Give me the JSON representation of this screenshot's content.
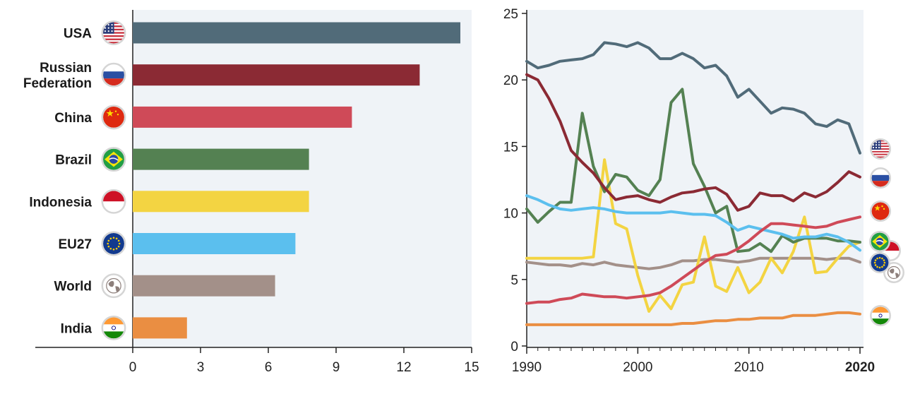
{
  "chart_data": [
    {
      "type": "bar",
      "orientation": "horizontal",
      "categories": [
        "USA",
        "Russian Federation",
        "China",
        "Brazil",
        "Indonesia",
        "EU27",
        "World",
        "India"
      ],
      "category_lines": [
        [
          "USA"
        ],
        [
          "Russian",
          "Federation"
        ],
        [
          "China"
        ],
        [
          "Brazil"
        ],
        [
          "Indonesia"
        ],
        [
          "EU27"
        ],
        [
          "World"
        ],
        [
          "India"
        ]
      ],
      "flags": [
        "us-flag-icon",
        "russia-flag-icon",
        "china-flag-icon",
        "brazil-flag-icon",
        "indonesia-flag-icon",
        "eu-flag-icon",
        "globe-icon",
        "india-flag-icon"
      ],
      "values": [
        14.5,
        12.7,
        9.7,
        7.8,
        7.8,
        7.2,
        6.3,
        2.4
      ],
      "colors": [
        "#516b79",
        "#8b2a34",
        "#cf4a58",
        "#548152",
        "#f3d442",
        "#5bbfee",
        "#a39089",
        "#ea8e42"
      ],
      "xlim": [
        0,
        15
      ],
      "xticks": [
        0,
        3,
        6,
        9,
        12,
        15
      ],
      "grid": false
    },
    {
      "type": "line",
      "x": [
        1990,
        1991,
        1992,
        1993,
        1994,
        1995,
        1996,
        1997,
        1998,
        1999,
        2000,
        2001,
        2002,
        2003,
        2004,
        2005,
        2006,
        2007,
        2008,
        2009,
        2010,
        2011,
        2012,
        2013,
        2014,
        2015,
        2016,
        2017,
        2018,
        2019,
        2020
      ],
      "xticks": [
        "1990",
        "2000",
        "2010",
        "2020"
      ],
      "xlim": [
        1990,
        2020
      ],
      "ylim": [
        0,
        25
      ],
      "yticks": [
        0,
        5,
        10,
        15,
        20,
        25
      ],
      "grid": false,
      "series": [
        {
          "flag": "us-flag-icon",
          "color": "#516b79",
          "values": [
            21.4,
            20.9,
            21.1,
            21.4,
            21.5,
            21.6,
            21.9,
            22.8,
            22.7,
            22.5,
            22.8,
            22.4,
            21.6,
            21.6,
            22.0,
            21.6,
            20.9,
            21.1,
            20.3,
            18.7,
            19.3,
            18.4,
            17.5,
            17.9,
            17.8,
            17.5,
            16.7,
            16.5,
            17.0,
            16.7,
            14.5
          ]
        },
        {
          "flag": "russia-flag-icon",
          "color": "#8b2a34",
          "values": [
            20.4,
            20.0,
            18.6,
            16.9,
            14.7,
            13.8,
            13.0,
            11.9,
            11.0,
            11.2,
            11.3,
            11.0,
            10.8,
            11.2,
            11.5,
            11.6,
            11.8,
            11.9,
            11.4,
            10.2,
            10.5,
            11.5,
            11.3,
            11.3,
            10.9,
            11.5,
            11.2,
            11.6,
            12.3,
            13.1,
            12.7
          ]
        },
        {
          "flag": "china-flag-icon",
          "color": "#cf4a58",
          "values": [
            3.2,
            3.3,
            3.3,
            3.5,
            3.6,
            3.9,
            3.8,
            3.7,
            3.7,
            3.6,
            3.7,
            3.8,
            4.0,
            4.5,
            5.1,
            5.7,
            6.3,
            6.8,
            6.9,
            7.3,
            7.9,
            8.6,
            9.2,
            9.2,
            9.1,
            9.0,
            8.9,
            9.0,
            9.3,
            9.5,
            9.7
          ]
        },
        {
          "flag": "brazil-flag-icon",
          "color": "#548152",
          "values": [
            10.3,
            9.3,
            10.1,
            10.8,
            10.8,
            17.5,
            13.5,
            11.6,
            12.9,
            12.7,
            11.7,
            11.3,
            12.5,
            18.3,
            19.3,
            13.7,
            12.0,
            10.0,
            10.5,
            7.1,
            7.2,
            7.7,
            7.1,
            8.3,
            7.8,
            8.1,
            8.1,
            8.1,
            7.9,
            7.9,
            7.8
          ]
        },
        {
          "flag": "indonesia-flag-icon",
          "color": "#f3d442",
          "values": [
            6.6,
            6.6,
            6.6,
            6.6,
            6.6,
            6.6,
            6.7,
            14.0,
            9.2,
            8.8,
            5.3,
            2.6,
            3.8,
            2.8,
            4.6,
            4.8,
            8.2,
            4.5,
            4.1,
            5.9,
            4.0,
            4.8,
            6.6,
            5.5,
            7.1,
            9.7,
            5.5,
            5.6,
            6.6,
            7.5,
            7.8
          ]
        },
        {
          "flag": "eu-flag-icon",
          "color": "#5bbfee",
          "values": [
            11.3,
            11.0,
            10.6,
            10.3,
            10.2,
            10.3,
            10.4,
            10.3,
            10.1,
            10.0,
            10.0,
            10.0,
            10.0,
            10.1,
            10.0,
            9.9,
            9.9,
            9.8,
            9.3,
            8.7,
            9.0,
            8.8,
            8.6,
            8.4,
            8.1,
            8.2,
            8.2,
            8.4,
            8.2,
            7.8,
            7.2
          ]
        },
        {
          "flag": "globe-icon",
          "color": "#a39089",
          "values": [
            6.3,
            6.2,
            6.1,
            6.1,
            6.0,
            6.2,
            6.1,
            6.3,
            6.1,
            6.0,
            5.9,
            5.8,
            5.9,
            6.1,
            6.4,
            6.4,
            6.5,
            6.5,
            6.4,
            6.3,
            6.4,
            6.6,
            6.6,
            6.6,
            6.6,
            6.6,
            6.6,
            6.5,
            6.6,
            6.6,
            6.3
          ]
        },
        {
          "flag": "india-flag-icon",
          "color": "#ea8e42",
          "values": [
            1.6,
            1.6,
            1.6,
            1.6,
            1.6,
            1.6,
            1.6,
            1.6,
            1.6,
            1.6,
            1.6,
            1.6,
            1.6,
            1.6,
            1.7,
            1.7,
            1.8,
            1.9,
            1.9,
            2.0,
            2.0,
            2.1,
            2.1,
            2.1,
            2.3,
            2.3,
            2.3,
            2.4,
            2.5,
            2.5,
            2.4
          ]
        }
      ]
    }
  ]
}
